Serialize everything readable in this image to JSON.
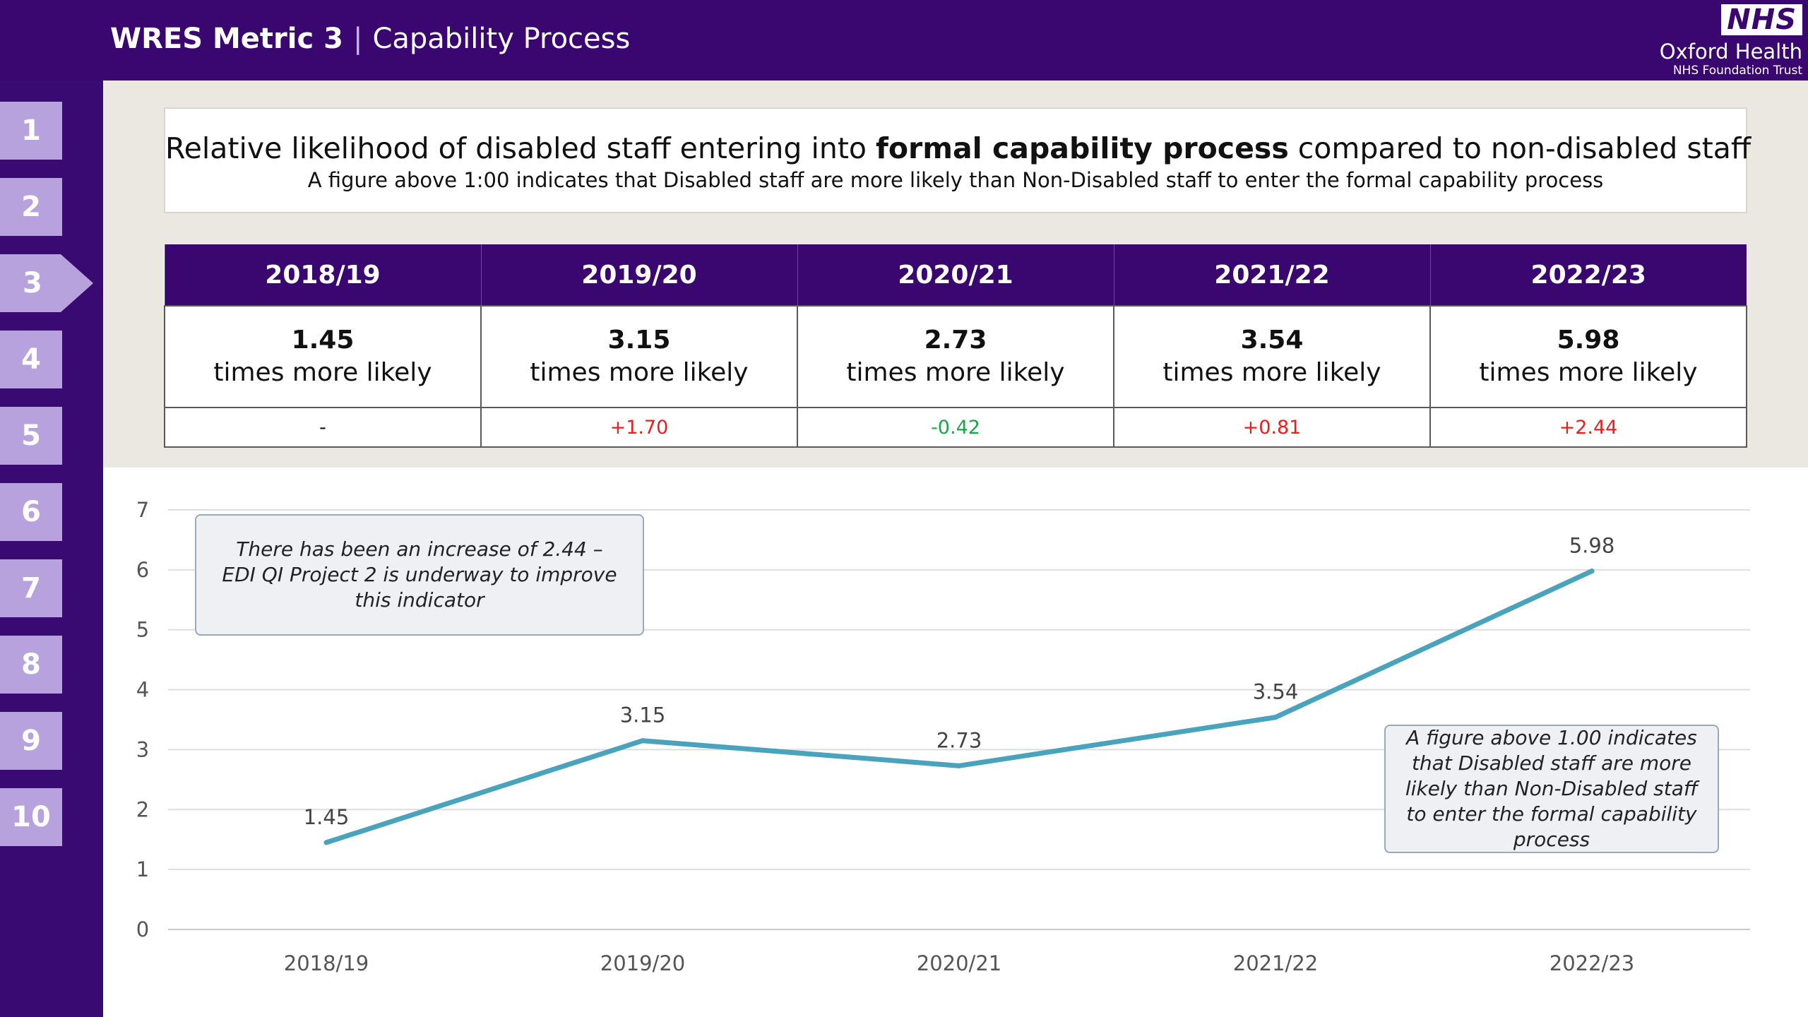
{
  "header": {
    "title_bold": "WRES Metric 3",
    "separator": "|",
    "title_sub": "Capability Process",
    "logo_nhs": "NHS",
    "logo_org": "Oxford Health",
    "logo_trust": "NHS Foundation Trust"
  },
  "sidebar": {
    "items": [
      {
        "label": "1"
      },
      {
        "label": "2"
      },
      {
        "label": "3"
      },
      {
        "label": "4"
      },
      {
        "label": "5"
      },
      {
        "label": "6"
      },
      {
        "label": "7"
      },
      {
        "label": "8"
      },
      {
        "label": "9"
      },
      {
        "label": "10"
      }
    ],
    "active_index": 2
  },
  "headline": {
    "prefix": "Relative likelihood of disabled staff entering into ",
    "emphasis": "formal capability process",
    "suffix": " compared to non-disabled staff",
    "subtitle": "A figure above 1:00 indicates that Disabled staff are more likely than Non-Disabled staff to enter the formal capability process"
  },
  "table": {
    "years": [
      "2018/19",
      "2019/20",
      "2020/21",
      "2021/22",
      "2022/23"
    ],
    "values": [
      "1.45",
      "3.15",
      "2.73",
      "3.54",
      "5.98"
    ],
    "value_caption": "times more likely",
    "changes": [
      "-",
      "+1.70",
      "-0.42",
      "+0.81",
      "+2.44"
    ]
  },
  "colors": {
    "header_purple": "#3a0670",
    "tab_lavender": "#b7a2dd",
    "line": "#4aa3bd",
    "increase": "#e8201c",
    "decrease": "#1aa54b",
    "neutral": "#111111"
  },
  "callouts": {
    "left": "There has been an increase of 2.44 – EDI QI Project 2 is underway to improve this indicator",
    "right": "A figure above 1.00 indicates that Disabled staff are more likely than Non-Disabled staff to enter the formal capability process"
  },
  "chart_data": {
    "type": "line",
    "categories": [
      "2018/19",
      "2019/20",
      "2020/21",
      "2021/22",
      "2022/23"
    ],
    "series": [
      {
        "values": [
          1.45,
          3.15,
          2.73,
          3.54,
          5.98
        ]
      }
    ],
    "data_labels": [
      "1.45",
      "3.15",
      "2.73",
      "3.54",
      "5.98"
    ],
    "y_ticks": [
      0,
      1,
      2,
      3,
      4,
      5,
      6,
      7
    ],
    "ylim": [
      0,
      7
    ],
    "grid": true,
    "legend": "none"
  }
}
